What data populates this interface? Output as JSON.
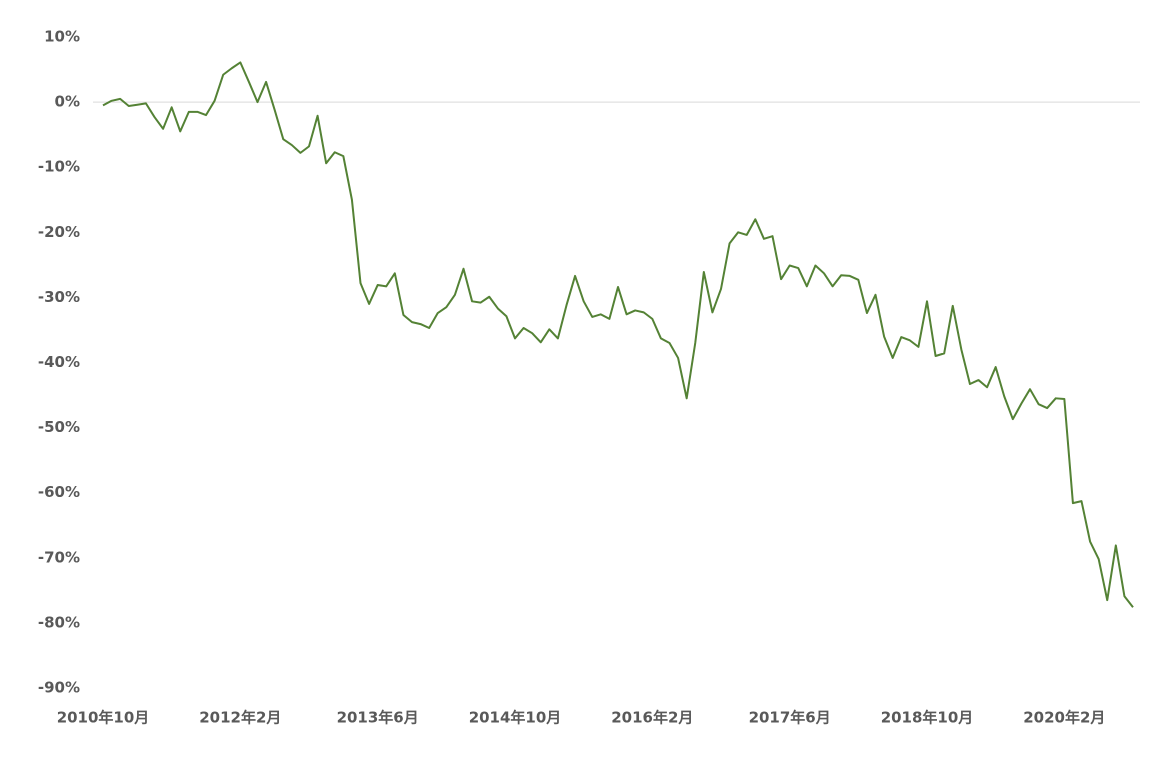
{
  "chart_data": {
    "type": "line",
    "categories": [
      "2010年10月",
      null,
      null,
      null,
      null,
      null,
      null,
      null,
      null,
      null,
      null,
      null,
      null,
      null,
      null,
      null,
      "2012年2月",
      null,
      null,
      null,
      null,
      null,
      null,
      null,
      null,
      null,
      null,
      null,
      null,
      null,
      null,
      null,
      "2013年6月",
      null,
      null,
      null,
      null,
      null,
      null,
      null,
      null,
      null,
      null,
      null,
      null,
      null,
      null,
      null,
      "2014年10月",
      null,
      null,
      null,
      null,
      null,
      null,
      null,
      null,
      null,
      null,
      null,
      null,
      null,
      null,
      null,
      "2016年2月",
      null,
      null,
      null,
      null,
      null,
      null,
      null,
      null,
      null,
      null,
      null,
      null,
      null,
      null,
      null,
      "2017年6月",
      null,
      null,
      null,
      null,
      null,
      null,
      null,
      null,
      null,
      null,
      null,
      null,
      null,
      null,
      null,
      "2018年10月",
      null,
      null,
      null,
      null,
      null,
      null,
      null,
      null,
      null,
      null,
      null,
      null,
      null,
      null,
      null,
      "2020年2月",
      null,
      null,
      null,
      null,
      null,
      null,
      null,
      null
    ],
    "values": [
      -0.5,
      0.2,
      0.5,
      -0.6,
      -0.4,
      -0.2,
      -2.3,
      -4.1,
      -0.8,
      -4.5,
      -1.5,
      -1.5,
      -2.0,
      0.2,
      4.2,
      5.2,
      6.1,
      3.1,
      0,
      3.1,
      -1.2,
      -5.7,
      -6.6,
      -7.8,
      -6.8,
      -2.1,
      -9.4,
      -7.7,
      -8.3,
      -15,
      -27.8,
      -31,
      -28.1,
      -28.3,
      -26.3,
      -32.7,
      -33.8,
      -34.1,
      -34.7,
      -32.4,
      -31.5,
      -29.6,
      -25.6,
      -30.6,
      -30.8,
      -29.9,
      -31.7,
      -32.9,
      -36.3,
      -34.7,
      -35.5,
      -36.9,
      -34.9,
      -36.3,
      -31.2,
      -26.7,
      -30.6,
      -33,
      -32.6,
      -33.3,
      -28.4,
      -32.6,
      -32,
      -32.3,
      -33.3,
      -36.3,
      -37,
      -39.3,
      -45.5,
      -37,
      -26.1,
      -32.3,
      -28.7,
      -21.7,
      -20,
      -20.4,
      -18,
      -21,
      -20.6,
      -27.2,
      -25.1,
      -25.5,
      -28.3,
      -25.1,
      -26.3,
      -28.3,
      -26.6,
      -26.7,
      -27.3,
      -32.4,
      -29.6,
      -36,
      -39.3,
      -36.1,
      -36.6,
      -37.6,
      -30.6,
      -39,
      -38.6,
      -31.3,
      -38,
      -43.3,
      -42.7,
      -43.8,
      -40.7,
      -45.2,
      -48.7,
      -46.3,
      -44.1,
      -46.4,
      -47,
      -45.5,
      -45.6,
      -61.6,
      -61.3,
      -67.5,
      -70.2,
      -76.5,
      -68.1,
      -75.9,
      -77.6
    ],
    "color": "#548235",
    "ylim": [
      -90,
      10
    ],
    "yticks": [
      {
        "value": 10,
        "label": "10%"
      },
      {
        "value": 0,
        "label": "0%"
      },
      {
        "value": -10,
        "label": "-10%"
      },
      {
        "value": -20,
        "label": "-20%"
      },
      {
        "value": -30,
        "label": "-30%"
      },
      {
        "value": -40,
        "label": "-40%"
      },
      {
        "value": -50,
        "label": "-50%"
      },
      {
        "value": -60,
        "label": "-60%"
      },
      {
        "value": -70,
        "label": "-70%"
      },
      {
        "value": -80,
        "label": "-80%"
      },
      {
        "value": -90,
        "label": "-90%"
      }
    ]
  }
}
